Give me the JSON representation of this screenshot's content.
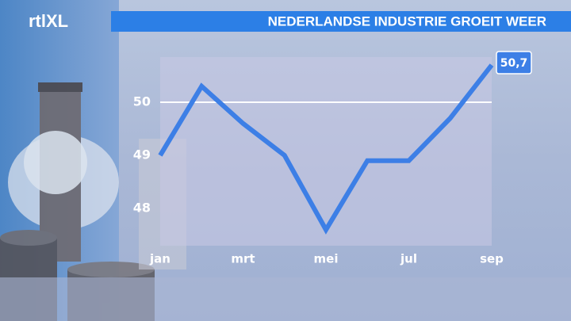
{
  "chart_data": {
    "type": "line",
    "logo": "rtlXL",
    "title": "NEDERLANDSE INDUSTRIE GROEIT WEER",
    "categories": [
      "jan",
      null,
      "mrt",
      null,
      "mei",
      null,
      "jul",
      null,
      "sep"
    ],
    "series": [
      {
        "name": "Nederlandse industrie",
        "color": "#3d7fe6",
        "values": [
          49.0,
          50.3,
          49.6,
          49.0,
          47.6,
          48.9,
          48.9,
          49.7,
          50.7
        ],
        "value_labels": [
          null,
          null,
          null,
          null,
          null,
          null,
          null,
          null,
          "50,7"
        ]
      }
    ],
    "ylim": [
      47.3,
      50.85
    ],
    "yticks": [
      48,
      49,
      50
    ],
    "reference_line": 50,
    "grid": false
  }
}
